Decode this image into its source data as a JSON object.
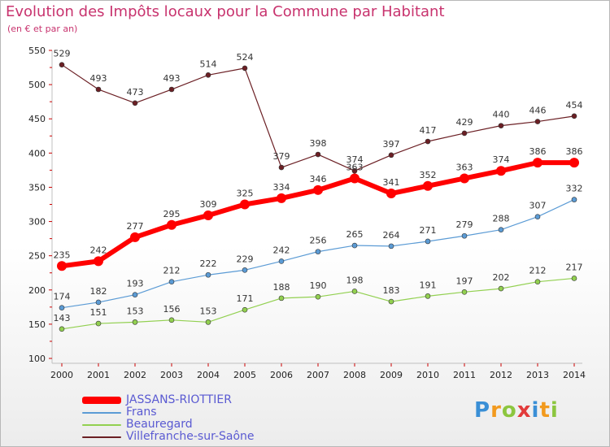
{
  "header": {
    "title": "Evolution des Impôts locaux pour la Commune par Habitant",
    "subtitle": "(en € et par an)"
  },
  "logo": {
    "text": "Proxiti",
    "colors": [
      "#3a8fd6",
      "#f29a1e",
      "#8cc63f",
      "#e23b3b",
      "#3a8fd6",
      "#f29a1e",
      "#8cc63f"
    ]
  },
  "chart_data": {
    "type": "line",
    "categories": [
      "2000",
      "2001",
      "2002",
      "2003",
      "2004",
      "2005",
      "2006",
      "2007",
      "2008",
      "2009",
      "2010",
      "2011",
      "2012",
      "2013",
      "2014"
    ],
    "ylim": [
      100,
      550
    ],
    "yticks": [
      100,
      150,
      200,
      250,
      300,
      350,
      400,
      450,
      500,
      550
    ],
    "grid": false,
    "legend_position": "bottom-left",
    "series": [
      {
        "name": "Villefranche-sur-Saône",
        "color": "#6b1f24",
        "width": 1.2,
        "marker": 3,
        "values": [
          529,
          493,
          473,
          493,
          514,
          524,
          379,
          398,
          374,
          397,
          417,
          429,
          440,
          446,
          454
        ]
      },
      {
        "name": "Frans",
        "color": "#5b9bd5",
        "width": 1.2,
        "marker": 3,
        "values": [
          174,
          182,
          193,
          212,
          222,
          229,
          242,
          256,
          265,
          264,
          271,
          279,
          288,
          307,
          332
        ]
      },
      {
        "name": "Beauregard",
        "color": "#92d050",
        "width": 1.2,
        "marker": 3,
        "values": [
          143,
          151,
          153,
          156,
          153,
          171,
          188,
          190,
          198,
          183,
          191,
          197,
          202,
          212,
          217
        ]
      },
      {
        "name": "JASSANS-RIOTTIER",
        "color": "#ff0000",
        "width": 6,
        "marker": 6,
        "values": [
          235,
          242,
          277,
          295,
          309,
          325,
          334,
          346,
          363,
          341,
          352,
          363,
          374,
          386,
          386
        ]
      }
    ],
    "legend_order": [
      "JASSANS-RIOTTIER",
      "Frans",
      "Beauregard",
      "Villefranche-sur-Saône"
    ]
  }
}
